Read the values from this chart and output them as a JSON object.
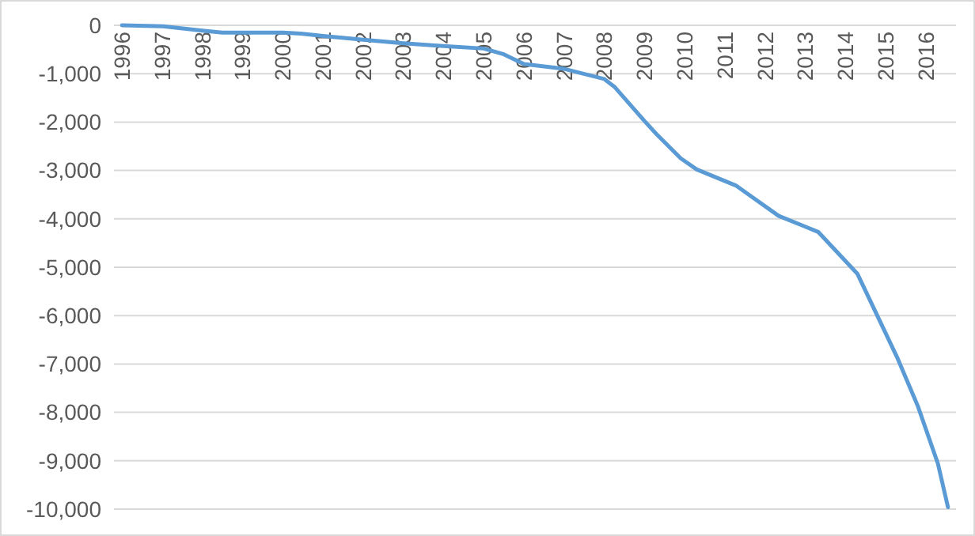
{
  "chart_data": {
    "type": "line",
    "x": [
      1996,
      1997.02,
      1998,
      1998.5,
      2000,
      2000.45,
      2001,
      2002,
      2003,
      2004,
      2005,
      2005.5,
      2006,
      2007,
      2008,
      2008.25,
      2009,
      2009.3,
      2009.9,
      2010.3,
      2011.27,
      2012.34,
      2013.32,
      2014.3,
      2015.3,
      2015.8,
      2016.3,
      2016.55
    ],
    "series": [
      {
        "color": "#5b9bd5",
        "values": [
          0,
          -20,
          -110,
          -150,
          -150,
          -170,
          -220,
          -300,
          -370,
          -430,
          -480,
          -600,
          -800,
          -900,
          -1110,
          -1270,
          -1980,
          -2250,
          -2750,
          -2980,
          -3310,
          -3940,
          -4270,
          -5140,
          -6890,
          -7870,
          -9060,
          -9960
        ]
      }
    ],
    "xlim": [
      1995.8,
      2016.75
    ],
    "xticks": [
      1996,
      1997,
      1998,
      1999,
      2000,
      2001,
      2002,
      2003,
      2004,
      2005,
      2006,
      2007,
      2008,
      2009,
      2010,
      2011,
      2012,
      2013,
      2014,
      2015,
      2016
    ],
    "ylim": [
      -10000,
      0
    ],
    "yticks": [
      0,
      {
        "value": -1000,
        "label": "-1,000"
      },
      {
        "value": -2000,
        "label": "-2,000"
      },
      {
        "value": -3000,
        "label": "-3,000"
      },
      {
        "value": -4000,
        "label": "-4,000"
      },
      {
        "value": -5000,
        "label": "-5,000"
      },
      {
        "value": -6000,
        "label": "-6,000"
      },
      {
        "value": -7000,
        "label": "-7,000"
      },
      {
        "value": -8000,
        "label": "-8,000"
      },
      {
        "value": -9000,
        "label": "-9,000"
      },
      {
        "value": -10000,
        "label": "-10,000"
      }
    ],
    "grid": "y",
    "marker": "none",
    "line_style": "solid"
  }
}
